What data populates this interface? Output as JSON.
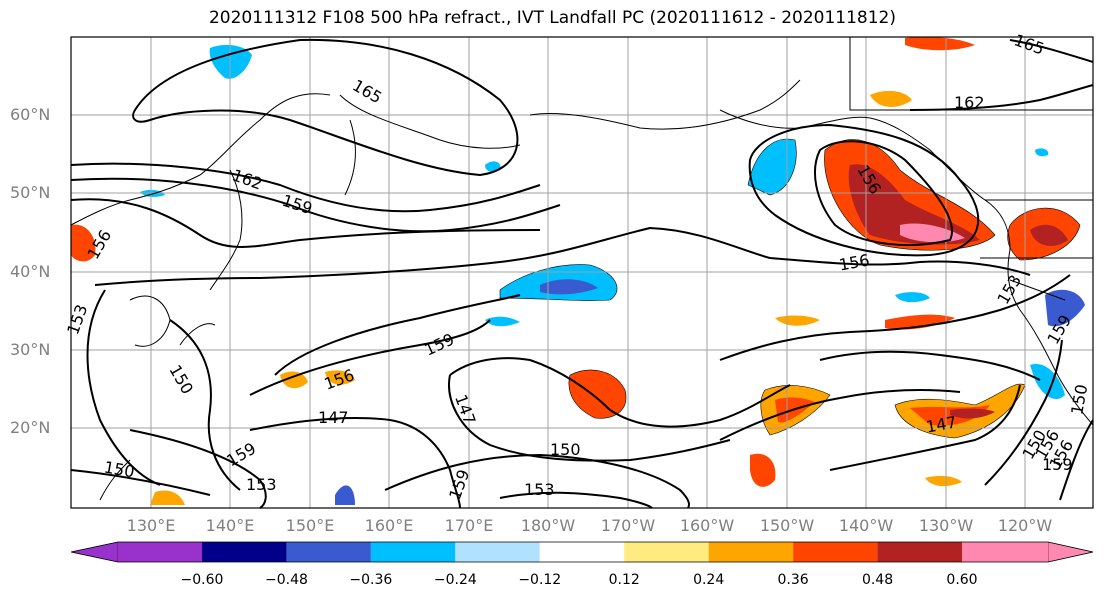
{
  "title": "2020111312 F108 500 hPa refract., IVT Landfall PC (2020111612 - 2020111812)",
  "lat_labels": [
    "60°N",
    "50°N",
    "40°N",
    "30°N",
    "20°N"
  ],
  "lon_labels": [
    "130°E",
    "140°E",
    "150°E",
    "160°E",
    "170°E",
    "180°W",
    "170°W",
    "160°W",
    "150°W",
    "140°W",
    "130°W",
    "120°W"
  ],
  "contour_labels": [
    "165",
    "162",
    "159",
    "156",
    "153",
    "150",
    "147",
    "159",
    "150",
    "153",
    "156",
    "159",
    "147",
    "150",
    "153",
    "159",
    "162",
    "165",
    "156",
    "153",
    "147",
    "150",
    "156",
    "159",
    "156",
    "159",
    "150",
    "156"
  ],
  "colorbar": {
    "ticks": [
      "−0.60",
      "−0.48",
      "−0.36",
      "−0.24",
      "−0.12",
      "0.12",
      "0.24",
      "0.36",
      "0.48",
      "0.60"
    ],
    "colors": [
      "#9932cc",
      "#00008b",
      "#3a5bd0",
      "#00bfff",
      "#b0e2ff",
      "#ffffff",
      "#ffeb80",
      "#ffa500",
      "#ff4500",
      "#b22222",
      "#ff88b0"
    ]
  }
}
